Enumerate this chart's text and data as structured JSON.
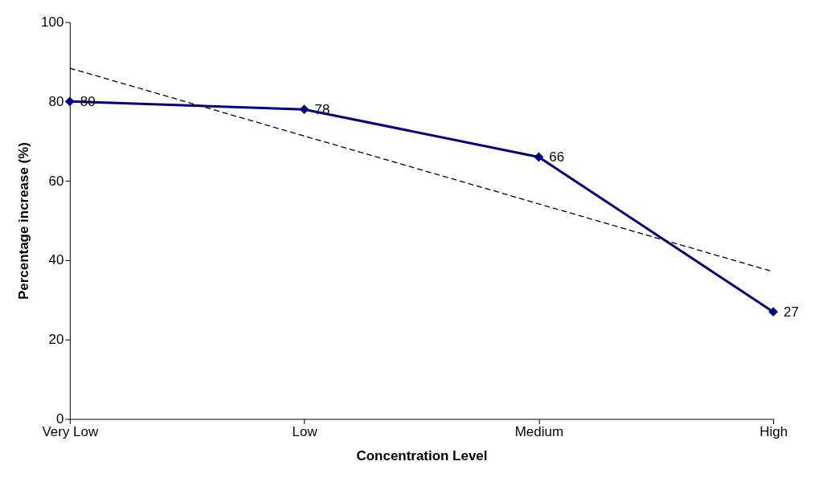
{
  "chart_data": {
    "type": "line",
    "xlabel": "Concentration Level",
    "ylabel": "Percentage increase (%)",
    "categories": [
      "Very Low",
      "Low",
      "Medium",
      "High"
    ],
    "series": [
      {
        "color": "#000080",
        "values": [
          80,
          78,
          66,
          27
        ],
        "marker": "diamond",
        "line_style": "solid",
        "data_labels": true
      },
      {
        "type": "line",
        "color": "#000000",
        "values": [
          88.4,
          71.3,
          54.2,
          37.1
        ],
        "marker": "none",
        "line_style": "dashed"
      }
    ],
    "ylim": [
      0,
      100
    ],
    "yticks": [
      0,
      20,
      40,
      60,
      80,
      100
    ],
    "grid": false
  }
}
